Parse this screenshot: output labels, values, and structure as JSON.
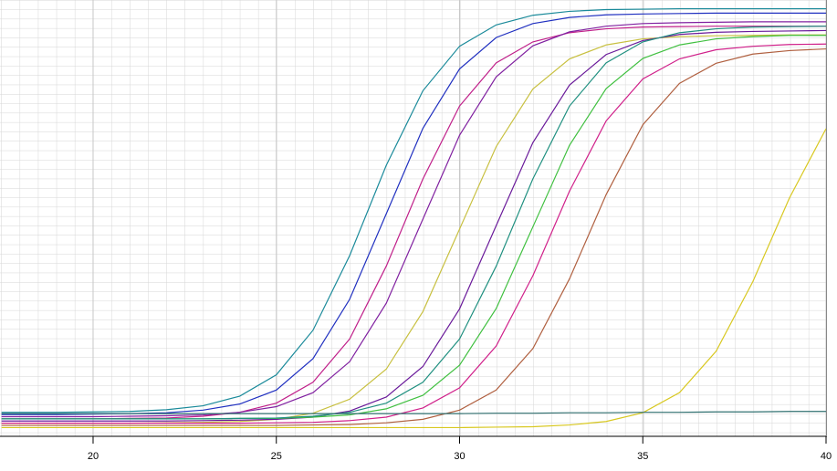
{
  "chart_data": {
    "type": "line",
    "x": [
      17.5,
      18,
      19,
      20,
      21,
      22,
      23,
      24,
      25,
      26,
      27,
      28,
      29,
      30,
      31,
      32,
      33,
      34,
      35,
      36,
      37,
      38,
      39,
      40
    ],
    "xlim": [
      17.46,
      40
    ],
    "xticks": [
      20,
      25,
      30,
      35,
      40
    ],
    "ylim": [
      0,
      100
    ],
    "grid": true,
    "series": [
      {
        "color": "#1a8a9a",
        "values": [
          5.5,
          5.5,
          5.5,
          5.6,
          5.7,
          6.1,
          7.0,
          9.2,
          14.1,
          24.3,
          41.4,
          62.1,
          79.2,
          89.4,
          94.3,
          96.5,
          97.4,
          97.8,
          97.9,
          98.0,
          98.0,
          98.0,
          98.0,
          98.0
        ]
      },
      {
        "color": "#2030c0",
        "values": [
          5.0,
          5.0,
          5.0,
          5.1,
          5.2,
          5.4,
          6.0,
          7.4,
          10.6,
          17.8,
          31.4,
          51.0,
          70.6,
          84.2,
          91.4,
          94.6,
          96.0,
          96.6,
          96.8,
          96.9,
          97.0,
          97.0,
          97.0,
          97.0
        ]
      },
      {
        "color": "#c0208a",
        "values": [
          4.0,
          4.0,
          4.0,
          4.0,
          4.1,
          4.2,
          4.6,
          5.5,
          7.6,
          12.4,
          22.3,
          39.0,
          59.0,
          75.7,
          85.6,
          90.4,
          92.5,
          93.4,
          93.8,
          93.9,
          94.0,
          94.0,
          94.0,
          94.0
        ]
      },
      {
        "color": "#8020a0",
        "values": [
          4.5,
          4.5,
          4.5,
          4.5,
          4.6,
          4.7,
          4.9,
          5.5,
          6.8,
          10.0,
          17.1,
          30.5,
          49.8,
          69.0,
          82.4,
          89.5,
          92.7,
          94.0,
          94.6,
          94.8,
          94.9,
          95.0,
          95.0,
          95.0
        ]
      },
      {
        "color": "#c8c040",
        "values": [
          3.0,
          3.0,
          3.0,
          3.0,
          3.0,
          3.1,
          3.2,
          3.4,
          3.9,
          5.3,
          8.5,
          15.4,
          28.6,
          47.5,
          66.4,
          79.6,
          86.5,
          89.7,
          91.1,
          91.6,
          91.8,
          91.9,
          92.0,
          92.0
        ]
      },
      {
        "color": "#6a1a9a",
        "values": [
          3.5,
          3.5,
          3.5,
          3.5,
          3.5,
          3.5,
          3.6,
          3.7,
          3.9,
          4.4,
          5.8,
          9.0,
          16.0,
          29.2,
          48.3,
          67.3,
          80.5,
          87.5,
          90.7,
          92.1,
          92.6,
          92.8,
          92.9,
          93.0
        ]
      },
      {
        "color": "#40c040",
        "values": [
          4.0,
          4.0,
          4.0,
          4.0,
          4.0,
          4.0,
          4.0,
          4.1,
          4.1,
          4.4,
          4.9,
          6.3,
          9.4,
          16.3,
          29.3,
          48.0,
          66.7,
          79.7,
          86.6,
          89.7,
          91.1,
          91.6,
          91.9,
          91.9
        ]
      },
      {
        "color": "#d0208a",
        "values": [
          3.0,
          3.0,
          3.0,
          3.0,
          3.0,
          3.0,
          3.0,
          3.0,
          3.1,
          3.2,
          3.6,
          4.4,
          6.5,
          11.1,
          20.7,
          36.8,
          56.2,
          72.3,
          81.9,
          86.5,
          88.6,
          89.4,
          89.8,
          89.9
        ]
      },
      {
        "color": "#209080",
        "values": [
          4.0,
          4.0,
          4.0,
          4.0,
          4.0,
          4.0,
          4.0,
          4.1,
          4.2,
          4.6,
          5.5,
          7.6,
          12.4,
          22.3,
          39.0,
          59.0,
          75.7,
          85.6,
          90.4,
          92.5,
          93.4,
          93.8,
          93.9,
          94.0
        ]
      },
      {
        "color": "#b06040",
        "values": [
          2.5,
          2.5,
          2.5,
          2.5,
          2.5,
          2.5,
          2.5,
          2.5,
          2.5,
          2.6,
          2.7,
          3.1,
          3.9,
          6.0,
          10.6,
          20.1,
          36.1,
          55.4,
          71.4,
          80.9,
          85.5,
          87.6,
          88.4,
          88.8
        ]
      },
      {
        "color": "#d8c820",
        "values": [
          2.0,
          2.0,
          2.0,
          2.0,
          2.0,
          2.0,
          2.0,
          2.0,
          2.0,
          2.0,
          2.0,
          2.0,
          2.0,
          2.0,
          2.1,
          2.2,
          2.6,
          3.4,
          5.4,
          10.0,
          19.5,
          35.4,
          54.6,
          70.5
        ]
      },
      {
        "color": "#307070",
        "values": [
          5.2,
          5.2,
          5.2,
          5.2,
          5.2,
          5.2,
          5.2,
          5.2,
          5.2,
          5.2,
          5.2,
          5.2,
          5.2,
          5.2,
          5.3,
          5.3,
          5.4,
          5.4,
          5.5,
          5.5,
          5.6,
          5.6,
          5.7,
          5.7
        ]
      }
    ]
  }
}
